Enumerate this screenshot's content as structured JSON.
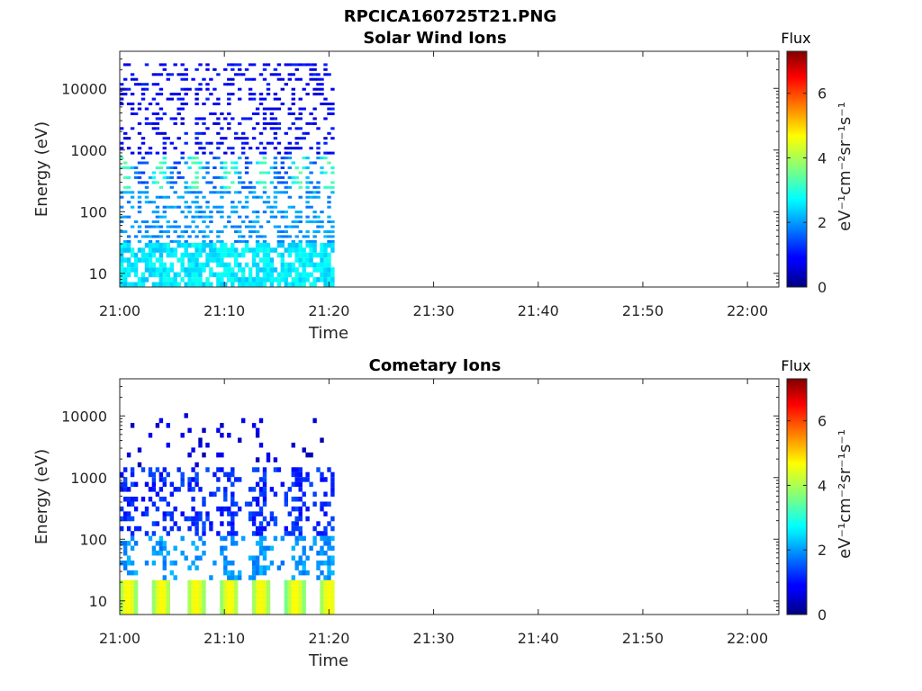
{
  "figure_title": "RPCICA160725T21.PNG",
  "chart_data": [
    {
      "type": "heatmap",
      "title": "Solar Wind Ions",
      "xlabel": "Time",
      "ylabel": "Energy (eV)",
      "x_ticks": [
        "21:00",
        "21:10",
        "21:20",
        "21:30",
        "21:40",
        "21:50",
        "22:00"
      ],
      "x_range_minutes": [
        0,
        63
      ],
      "y_scale": "log",
      "y_ticks": [
        "10",
        "100",
        "1000",
        "10000"
      ],
      "y_range": [
        6,
        40000
      ],
      "data_x_extent_minutes": [
        0,
        20.5
      ],
      "colorbar": {
        "title": "Flux",
        "label": "eV⁻¹cm⁻²sr⁻¹s⁻¹",
        "ticks": [
          "0",
          "2",
          "4",
          "6"
        ],
        "range": [
          0,
          7.3
        ],
        "colormap": "jet"
      },
      "flux_by_energy_band": [
        {
          "energy_range": [
            6,
            30
          ],
          "flux": 2.6
        },
        {
          "energy_range": [
            30,
            250
          ],
          "flux": 2.0
        },
        {
          "energy_range": [
            250,
            900
          ],
          "flux": 2.8
        },
        {
          "energy_range": [
            900,
            30000
          ],
          "flux": 0.9
        }
      ],
      "periodic_peaks_minutes": [
        0.5,
        3.8,
        7.2,
        10.5,
        13.8,
        17.2,
        20.0
      ]
    },
    {
      "type": "heatmap",
      "title": "Cometary Ions",
      "xlabel": "Time",
      "ylabel": "Energy (eV)",
      "x_ticks": [
        "21:00",
        "21:10",
        "21:20",
        "21:30",
        "21:40",
        "21:50",
        "22:00"
      ],
      "x_range_minutes": [
        0,
        63
      ],
      "y_scale": "log",
      "y_ticks": [
        "10",
        "100",
        "1000",
        "10000"
      ],
      "y_range": [
        6,
        40000
      ],
      "data_x_extent_minutes": [
        0,
        20.5
      ],
      "colorbar": {
        "title": "Flux",
        "label": "eV⁻¹cm⁻²sr⁻¹s⁻¹",
        "ticks": [
          "0",
          "2",
          "4",
          "6"
        ],
        "range": [
          0,
          7.3
        ],
        "colormap": "jet"
      },
      "flux_by_energy_band": [
        {
          "energy_range": [
            6,
            22
          ],
          "flux": 3.8
        },
        {
          "energy_range": [
            22,
            120
          ],
          "flux": 2.0
        },
        {
          "energy_range": [
            120,
            1400
          ],
          "flux": 1.2
        },
        {
          "energy_range": [
            1400,
            12000
          ],
          "flux": 0.6
        }
      ],
      "periodic_peaks_minutes": [
        0.8,
        4.0,
        7.3,
        10.5,
        13.5,
        16.8,
        20.0
      ]
    }
  ]
}
